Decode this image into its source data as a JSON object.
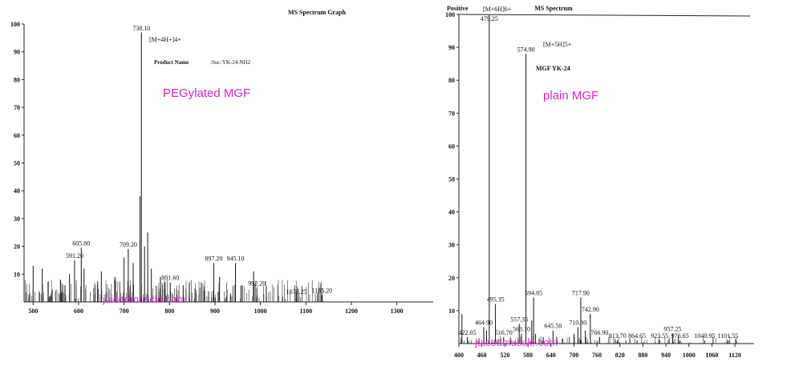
{
  "chart_data": [
    {
      "type": "bar",
      "title": "MS Spectrum Graph",
      "xlim": [
        480,
        1380
      ],
      "ylim": [
        0,
        100
      ],
      "xticks": [
        "500",
        "600",
        "700",
        "800",
        "900",
        "1000",
        "1100",
        "1200",
        "1300"
      ],
      "yticks": [
        "10",
        "20",
        "30",
        "40",
        "50",
        "60",
        "70",
        "80",
        "90",
        "100"
      ],
      "annotation_ion": "[M+4H+]4+",
      "product_label": "Product Name",
      "product_value": ":Suc-YK-24-NH2",
      "overlay_label": "PEGylated MGF",
      "watermark": "juicedmuscle.com",
      "peaks": [
        {
          "x": 738.1,
          "y": 97,
          "label": "738.10"
        },
        {
          "x": 605.8,
          "y": 19.5,
          "label": "605.80"
        },
        {
          "x": 591.2,
          "y": 15,
          "label": "591.20"
        },
        {
          "x": 709.2,
          "y": 19,
          "label": "709.20"
        },
        {
          "x": 801.6,
          "y": 7,
          "label": "801.60"
        },
        {
          "x": 897.2,
          "y": 14,
          "label": "897.20"
        },
        {
          "x": 945.1,
          "y": 14,
          "label": "945.10"
        },
        {
          "x": 992.2,
          "y": 5,
          "label": "992.20"
        },
        {
          "x": 1079.25,
          "y": 2,
          "label": "1079.25"
        },
        {
          "x": 1135.2,
          "y": 2.5,
          "label": "1135.20"
        },
        {
          "x": 735,
          "y": 38,
          "label": ""
        },
        {
          "x": 752,
          "y": 25,
          "label": ""
        },
        {
          "x": 745,
          "y": 20,
          "label": ""
        },
        {
          "x": 700,
          "y": 16,
          "label": ""
        },
        {
          "x": 720,
          "y": 14,
          "label": ""
        },
        {
          "x": 760,
          "y": 12,
          "label": ""
        },
        {
          "x": 612,
          "y": 12,
          "label": ""
        },
        {
          "x": 580,
          "y": 10,
          "label": ""
        },
        {
          "x": 520,
          "y": 12,
          "label": ""
        },
        {
          "x": 500,
          "y": 13,
          "label": ""
        },
        {
          "x": 560,
          "y": 8,
          "label": ""
        },
        {
          "x": 650,
          "y": 11,
          "label": ""
        },
        {
          "x": 680,
          "y": 9,
          "label": ""
        },
        {
          "x": 780,
          "y": 9,
          "label": ""
        },
        {
          "x": 830,
          "y": 6,
          "label": ""
        },
        {
          "x": 870,
          "y": 7,
          "label": ""
        },
        {
          "x": 910,
          "y": 9,
          "label": ""
        },
        {
          "x": 960,
          "y": 6,
          "label": ""
        },
        {
          "x": 985,
          "y": 11,
          "label": ""
        }
      ]
    },
    {
      "type": "bar",
      "title": "MS Spectrum",
      "corner_label": "Positive",
      "xlim": [
        400,
        1170
      ],
      "ylim": [
        0,
        100
      ],
      "xticks": [
        "400",
        "460",
        "520",
        "580",
        "640",
        "700",
        "760",
        "820",
        "880",
        "940",
        "1000",
        "1060",
        "1120"
      ],
      "yticks": [
        "10",
        "20",
        "30",
        "40",
        "50",
        "60",
        "70",
        "80",
        "90",
        "100"
      ],
      "ion_label_1": "[M+6H]6+",
      "ion_label_2": "[M+5H]5+",
      "compound_label": "MGF YK-24",
      "overlay_label": "plain MGF",
      "watermark": "juicedmuscle.com",
      "peaks": [
        {
          "x": 479.25,
          "y": 100,
          "label": "479.25"
        },
        {
          "x": 574.9,
          "y": 88,
          "label": "574.90"
        },
        {
          "x": 495.35,
          "y": 12,
          "label": "495.35"
        },
        {
          "x": 594.85,
          "y": 14,
          "label": "594.85"
        },
        {
          "x": 717.9,
          "y": 14,
          "label": "717.90"
        },
        {
          "x": 742.9,
          "y": 9,
          "label": "742.90"
        },
        {
          "x": 710.3,
          "y": 5,
          "label": "710.30"
        },
        {
          "x": 645.5,
          "y": 4,
          "label": "645.50"
        },
        {
          "x": 557.35,
          "y": 6,
          "label": "557.35"
        },
        {
          "x": 563.1,
          "y": 3,
          "label": "563.10"
        },
        {
          "x": 516.7,
          "y": 2,
          "label": "516.70"
        },
        {
          "x": 464.9,
          "y": 5,
          "label": "464.90"
        },
        {
          "x": 422.05,
          "y": 2,
          "label": "422.05"
        },
        {
          "x": 957.25,
          "y": 3,
          "label": "957.25"
        },
        {
          "x": 766.9,
          "y": 2,
          "label": "766.90"
        },
        {
          "x": 813.7,
          "y": 1,
          "label": "813.70"
        },
        {
          "x": 864.65,
          "y": 1,
          "label": "864.65"
        },
        {
          "x": 923.55,
          "y": 1,
          "label": "923.55"
        },
        {
          "x": 976.65,
          "y": 1,
          "label": "976.65"
        },
        {
          "x": 1040.95,
          "y": 1,
          "label": "1040.95"
        },
        {
          "x": 1101.55,
          "y": 1,
          "label": "1101.55"
        },
        {
          "x": 408,
          "y": 9,
          "label": ""
        },
        {
          "x": 472,
          "y": 4,
          "label": ""
        },
        {
          "x": 590,
          "y": 7,
          "label": ""
        },
        {
          "x": 600,
          "y": 3,
          "label": ""
        },
        {
          "x": 620,
          "y": 2,
          "label": ""
        },
        {
          "x": 700,
          "y": 3,
          "label": ""
        },
        {
          "x": 730,
          "y": 4,
          "label": ""
        }
      ]
    }
  ]
}
